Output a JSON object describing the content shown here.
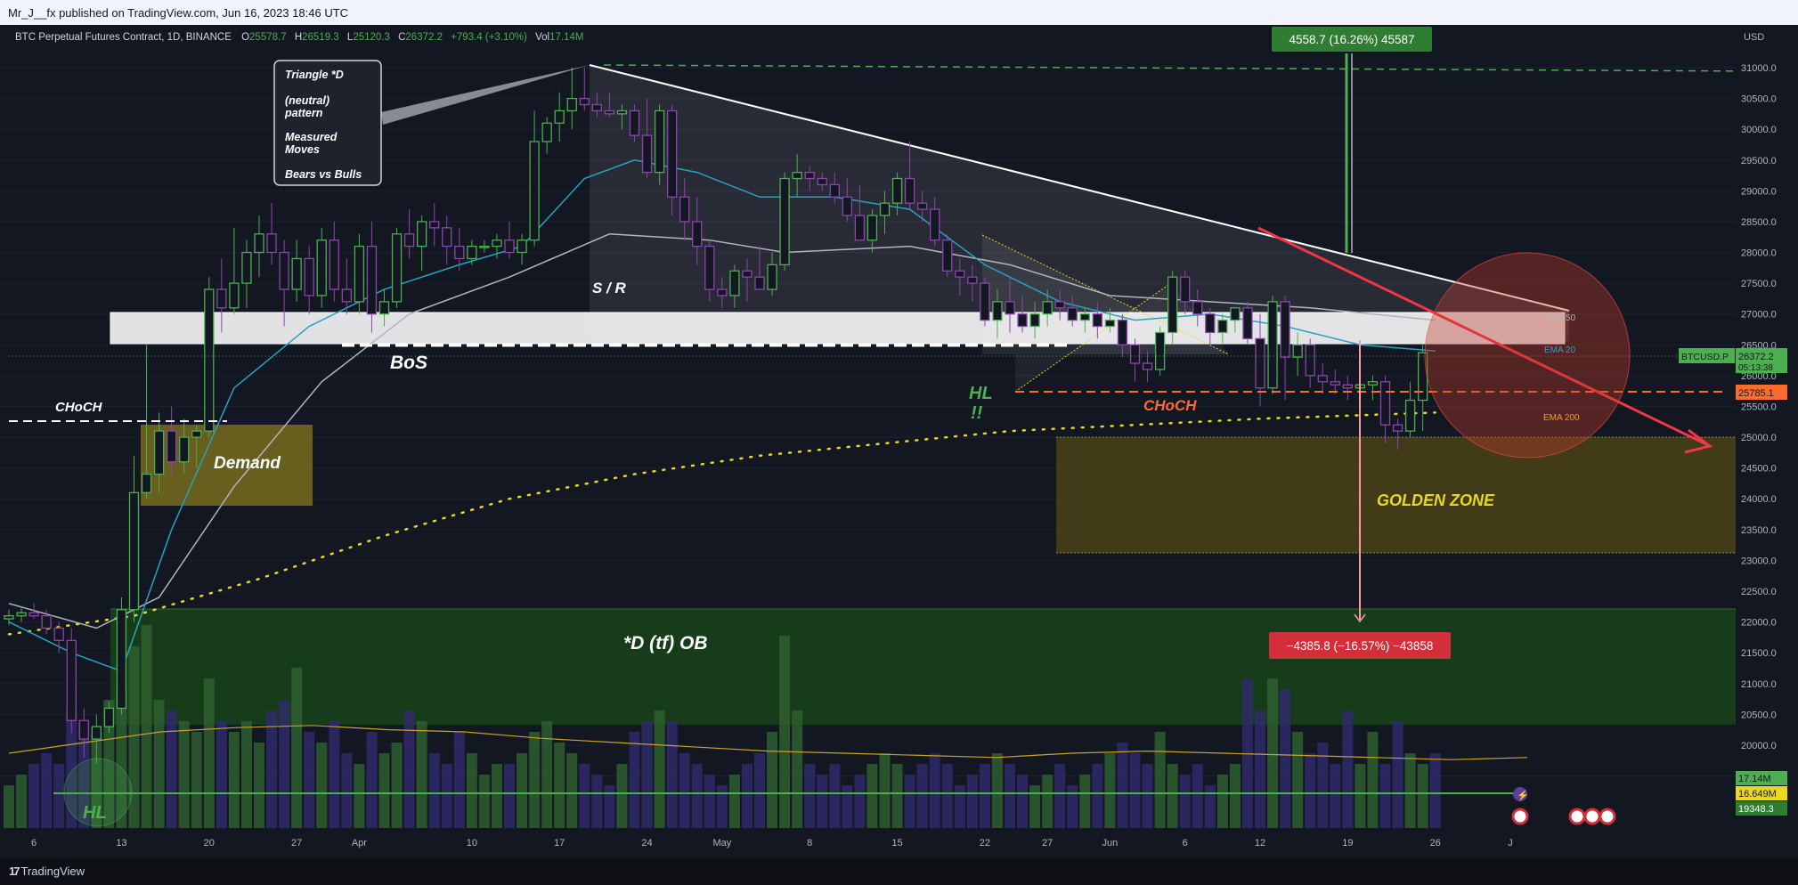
{
  "header": {
    "publisher": "Mr_J__fx published on TradingView.com, Jun 16, 2023 18:46 UTC"
  },
  "legend": {
    "symbol": "BTC Perpetual Futures Contract, 1D, BINANCE",
    "o_key": "O",
    "o_val": "25578.7",
    "h_key": "H",
    "h_val": "26519.3",
    "l_key": "L",
    "l_val": "25120.3",
    "c_key": "C",
    "c_val": "26372.2",
    "change": "+793.4 (+3.10%)",
    "vol_key": "Vol",
    "vol_val": "17.14M"
  },
  "footer": {
    "brand": "TradingView",
    "logo_glyph": "17"
  },
  "colors": {
    "background": "#131722",
    "up": "#4caf50",
    "down": "#8e44ad",
    "ema20": "#26a4bf",
    "ema50": "#b2b5be",
    "ema200": "#e9d81f",
    "cursor": "#4caf50"
  },
  "annotations": {
    "triangle_box": [
      "Triangle *D",
      "(neutral)",
      "pattern",
      "Measured",
      "Moves",
      "Bears vs Bulls"
    ],
    "sr": "S / R",
    "bos": "BoS",
    "choch_left": "CHoCH",
    "choch_mid": "CHoCH",
    "demand": "Demand",
    "hl_mid": "HL",
    "hl_mid_excl": "!!",
    "golden": "GOLDEN ZONE",
    "ob": "*D (tf) OB",
    "hl_bottom": "HL",
    "measure_up": "4558.7 (16.26%) 45587",
    "measure_down": "−4385.8 (−16.57%) −43858",
    "ema50": "EMA 50",
    "ema20": "EMA 20",
    "ema200": "EMA 200"
  },
  "price_axis": {
    "currency": "USD",
    "ticks": [
      "31000.0",
      "30500.0",
      "30000.0",
      "29500.0",
      "29000.0",
      "28500.0",
      "28000.0",
      "27500.0",
      "27000.0",
      "26500.0",
      "26000.0",
      "25500.0",
      "25000.0",
      "24500.0",
      "24000.0",
      "23500.0",
      "23000.0",
      "22500.0",
      "22000.0",
      "21500.0",
      "21000.0",
      "20500.0",
      "20000.0",
      "19500.0"
    ],
    "tick_values": [
      31000,
      30500,
      30000,
      29500,
      29000,
      28500,
      28000,
      27500,
      27000,
      26500,
      26000,
      25500,
      25000,
      24500,
      24000,
      23500,
      23000,
      22500,
      22000,
      21500,
      21000,
      20500,
      20000,
      19500
    ],
    "symbol_tag": "BTCUSD.P",
    "last_price": "26372.2",
    "countdown": "05:13:38",
    "level_tag": "25785.1",
    "vol_tag": "17.14M",
    "vol_ma_tag": "16.649M",
    "vol_avg_tag": "19348.3"
  },
  "time_axis": {
    "labels": [
      "6",
      "13",
      "20",
      "27",
      "Apr",
      "10",
      "17",
      "24",
      "May",
      "8",
      "15",
      "22",
      "27",
      "Jun",
      "6",
      "12",
      "19",
      "26",
      "J"
    ],
    "label_bars": [
      -4,
      3,
      10,
      17,
      22,
      31,
      38,
      45,
      51,
      58,
      65,
      72,
      77,
      82,
      88,
      94,
      101,
      108,
      114
    ]
  },
  "chart_data": {
    "type": "candlestick",
    "symbol": "BTC Perpetual Futures Contract",
    "timeframe": "1D",
    "exchange": "BINANCE",
    "ylim": [
      19500,
      31400
    ],
    "candles": [
      [
        22050,
        22200,
        21950,
        22100
      ],
      [
        22100,
        22250,
        22000,
        22150
      ],
      [
        22150,
        22300,
        22050,
        22100
      ],
      [
        22100,
        22200,
        21800,
        21900
      ],
      [
        21900,
        22000,
        21500,
        21700
      ],
      [
        21700,
        21900,
        20200,
        20400
      ],
      [
        20400,
        20600,
        19800,
        20100
      ],
      [
        20100,
        20500,
        19700,
        20300
      ],
      [
        20300,
        20700,
        20200,
        20600
      ],
      [
        20600,
        22400,
        20500,
        22200
      ],
      [
        22200,
        24700,
        22000,
        24100
      ],
      [
        24100,
        26500,
        24000,
        24400
      ],
      [
        24400,
        25400,
        24100,
        25100
      ],
      [
        25100,
        25500,
        24400,
        24600
      ],
      [
        24600,
        25300,
        24400,
        25000
      ],
      [
        25000,
        25200,
        24500,
        25100
      ],
      [
        25100,
        27600,
        25000,
        27400
      ],
      [
        27400,
        27900,
        26700,
        27100
      ],
      [
        27100,
        28400,
        27000,
        27500
      ],
      [
        27500,
        28200,
        27100,
        28000
      ],
      [
        28000,
        28600,
        27600,
        28300
      ],
      [
        28300,
        28800,
        27800,
        28000
      ],
      [
        28000,
        28200,
        26800,
        27400
      ],
      [
        27400,
        28200,
        27200,
        27900
      ],
      [
        27900,
        28100,
        27000,
        27300
      ],
      [
        27300,
        28400,
        27100,
        28200
      ],
      [
        28200,
        28500,
        27200,
        27400
      ],
      [
        27400,
        27900,
        27000,
        27200
      ],
      [
        27200,
        28300,
        27000,
        28100
      ],
      [
        28100,
        28500,
        26700,
        27000
      ],
      [
        27000,
        27400,
        26800,
        27200
      ],
      [
        27200,
        28400,
        27100,
        28300
      ],
      [
        28300,
        28700,
        27900,
        28100
      ],
      [
        28100,
        28600,
        27700,
        28500
      ],
      [
        28500,
        28800,
        28100,
        28400
      ],
      [
        28400,
        28600,
        27800,
        28100
      ],
      [
        28100,
        28400,
        27700,
        27900
      ],
      [
        27900,
        28200,
        27800,
        28100
      ],
      [
        28100,
        28200,
        28000,
        28100
      ],
      [
        28100,
        28300,
        27900,
        28200
      ],
      [
        28200,
        28500,
        27900,
        28000
      ],
      [
        28000,
        28300,
        27800,
        28200
      ],
      [
        28200,
        30300,
        28100,
        29800
      ],
      [
        29800,
        30200,
        29600,
        30100
      ],
      [
        30100,
        30600,
        29800,
        30300
      ],
      [
        30300,
        31000,
        30000,
        30500
      ],
      [
        30500,
        31000,
        30300,
        30400
      ],
      [
        30400,
        30600,
        30200,
        30300
      ],
      [
        30300,
        30600,
        30200,
        30250
      ],
      [
        30250,
        30400,
        30000,
        30300
      ],
      [
        30300,
        30400,
        29800,
        29900
      ],
      [
        29900,
        30500,
        29200,
        29300
      ],
      [
        29300,
        30400,
        29100,
        30300
      ],
      [
        30300,
        30400,
        28600,
        28900
      ],
      [
        28900,
        29200,
        28200,
        28500
      ],
      [
        28500,
        28900,
        27800,
        28100
      ],
      [
        28100,
        28200,
        27200,
        27400
      ],
      [
        27400,
        27600,
        27100,
        27300
      ],
      [
        27300,
        27800,
        27100,
        27700
      ],
      [
        27700,
        27900,
        27200,
        27600
      ],
      [
        27600,
        28100,
        27400,
        27400
      ],
      [
        27400,
        28000,
        27300,
        27800
      ],
      [
        27800,
        29300,
        27700,
        29200
      ],
      [
        29200,
        29600,
        28900,
        29300
      ],
      [
        29300,
        29400,
        29000,
        29200
      ],
      [
        29200,
        29300,
        29000,
        29100
      ],
      [
        29100,
        29300,
        28800,
        28900
      ],
      [
        28900,
        29200,
        28500,
        28600
      ],
      [
        28600,
        29100,
        28200,
        28200
      ],
      [
        28200,
        28700,
        28000,
        28600
      ],
      [
        28600,
        29000,
        28300,
        28800
      ],
      [
        28800,
        29300,
        28600,
        29200
      ],
      [
        29200,
        29800,
        28700,
        28800
      ],
      [
        28800,
        29000,
        28500,
        28700
      ],
      [
        28700,
        28900,
        28100,
        28200
      ],
      [
        28200,
        28300,
        27600,
        27700
      ],
      [
        27700,
        27900,
        27300,
        27600
      ],
      [
        27600,
        27800,
        27200,
        27500
      ],
      [
        27500,
        27600,
        26800,
        26900
      ],
      [
        26900,
        27400,
        26600,
        27200
      ],
      [
        27200,
        27600,
        26700,
        27000
      ],
      [
        27000,
        27300,
        26700,
        26800
      ],
      [
        26800,
        27200,
        26600,
        27000
      ],
      [
        27000,
        27400,
        26800,
        27200
      ],
      [
        27200,
        27400,
        26900,
        27100
      ],
      [
        27100,
        27300,
        26800,
        26900
      ],
      [
        26900,
        27100,
        26700,
        27000
      ],
      [
        27000,
        27200,
        26600,
        26800
      ],
      [
        26800,
        27100,
        26700,
        26900
      ],
      [
        26900,
        27000,
        26300,
        26500
      ],
      [
        26500,
        26600,
        25900,
        26200
      ],
      [
        26200,
        26400,
        25900,
        26100
      ],
      [
        26100,
        26800,
        26000,
        26700
      ],
      [
        26700,
        27700,
        26500,
        27600
      ],
      [
        27600,
        27700,
        27000,
        27200
      ],
      [
        27200,
        27400,
        26800,
        27000
      ],
      [
        27000,
        27100,
        26500,
        26700
      ],
      [
        26700,
        27000,
        26500,
        26900
      ],
      [
        26900,
        27100,
        26700,
        27100
      ],
      [
        27100,
        27200,
        26500,
        26600
      ],
      [
        26600,
        27000,
        25500,
        25800
      ],
      [
        25800,
        27300,
        25700,
        27200
      ],
      [
        27200,
        27300,
        25600,
        26300
      ],
      [
        26300,
        26700,
        26000,
        26500
      ],
      [
        26500,
        26600,
        25800,
        26000
      ],
      [
        26000,
        26200,
        25700,
        25900
      ],
      [
        25900,
        26100,
        25700,
        25850
      ],
      [
        25850,
        26000,
        25600,
        25800
      ],
      [
        25800,
        26100,
        25600,
        25850
      ],
      [
        25850,
        26000,
        25600,
        25900
      ],
      [
        25900,
        26000,
        24900,
        25200
      ],
      [
        25200,
        25300,
        24800,
        25100
      ],
      [
        25100,
        25900,
        25000,
        25600
      ],
      [
        25600,
        26500,
        25100,
        26372
      ]
    ],
    "ema20": [
      [
        0,
        22000
      ],
      [
        5,
        21500
      ],
      [
        9,
        21200
      ],
      [
        13,
        23500
      ],
      [
        18,
        25800
      ],
      [
        24,
        26800
      ],
      [
        30,
        27400
      ],
      [
        36,
        27800
      ],
      [
        41,
        28100
      ],
      [
        46,
        29200
      ],
      [
        50,
        29500
      ],
      [
        55,
        29300
      ],
      [
        60,
        28900
      ],
      [
        66,
        28900
      ],
      [
        72,
        28700
      ],
      [
        78,
        27800
      ],
      [
        84,
        27200
      ],
      [
        90,
        26900
      ],
      [
        96,
        27000
      ],
      [
        102,
        26800
      ],
      [
        108,
        26500
      ],
      [
        114,
        26400
      ]
    ],
    "ema50": [
      [
        0,
        22300
      ],
      [
        7,
        21900
      ],
      [
        12,
        22400
      ],
      [
        18,
        24200
      ],
      [
        25,
        25900
      ],
      [
        32,
        27000
      ],
      [
        40,
        27600
      ],
      [
        48,
        28300
      ],
      [
        56,
        28200
      ],
      [
        62,
        28000
      ],
      [
        72,
        28100
      ],
      [
        80,
        27800
      ],
      [
        88,
        27300
      ],
      [
        96,
        27200
      ],
      [
        104,
        27100
      ],
      [
        114,
        26900
      ]
    ],
    "ema200": [
      [
        0,
        21800
      ],
      [
        10,
        22100
      ],
      [
        20,
        22700
      ],
      [
        30,
        23400
      ],
      [
        40,
        24000
      ],
      [
        50,
        24400
      ],
      [
        60,
        24700
      ],
      [
        70,
        24900
      ],
      [
        80,
        25100
      ],
      [
        90,
        25200
      ],
      [
        100,
        25300
      ],
      [
        114,
        25400
      ]
    ],
    "volume": [
      0.2,
      0.25,
      0.3,
      0.35,
      0.3,
      0.55,
      0.5,
      0.45,
      0.6,
      0.65,
      0.85,
      0.95,
      0.6,
      0.55,
      0.5,
      0.45,
      0.7,
      0.5,
      0.45,
      0.5,
      0.4,
      0.55,
      0.6,
      0.75,
      0.45,
      0.4,
      0.5,
      0.35,
      0.3,
      0.45,
      0.35,
      0.4,
      0.55,
      0.5,
      0.35,
      0.3,
      0.45,
      0.35,
      0.25,
      0.3,
      0.3,
      0.35,
      0.45,
      0.5,
      0.4,
      0.35,
      0.3,
      0.25,
      0.2,
      0.3,
      0.45,
      0.5,
      0.55,
      0.5,
      0.35,
      0.3,
      0.25,
      0.2,
      0.25,
      0.3,
      0.35,
      0.45,
      0.9,
      0.55,
      0.3,
      0.25,
      0.3,
      0.2,
      0.25,
      0.3,
      0.35,
      0.3,
      0.25,
      0.3,
      0.35,
      0.3,
      0.2,
      0.25,
      0.3,
      0.35,
      0.3,
      0.25,
      0.2,
      0.25,
      0.3,
      0.2,
      0.25,
      0.3,
      0.35,
      0.4,
      0.35,
      0.3,
      0.45,
      0.3,
      0.25,
      0.3,
      0.2,
      0.25,
      0.3,
      0.7,
      0.55,
      0.7,
      0.65,
      0.45,
      0.35,
      0.4,
      0.3,
      0.55,
      0.3,
      0.45,
      0.3,
      0.5,
      0.35,
      0.3,
      0.35
    ],
    "volume_ma": [
      0.35,
      0.4,
      0.45,
      0.47,
      0.48,
      0.46,
      0.45,
      0.42,
      0.4,
      0.38,
      0.36,
      0.35,
      0.34,
      0.33,
      0.35,
      0.36,
      0.35,
      0.34,
      0.33,
      0.32,
      0.33
    ]
  }
}
